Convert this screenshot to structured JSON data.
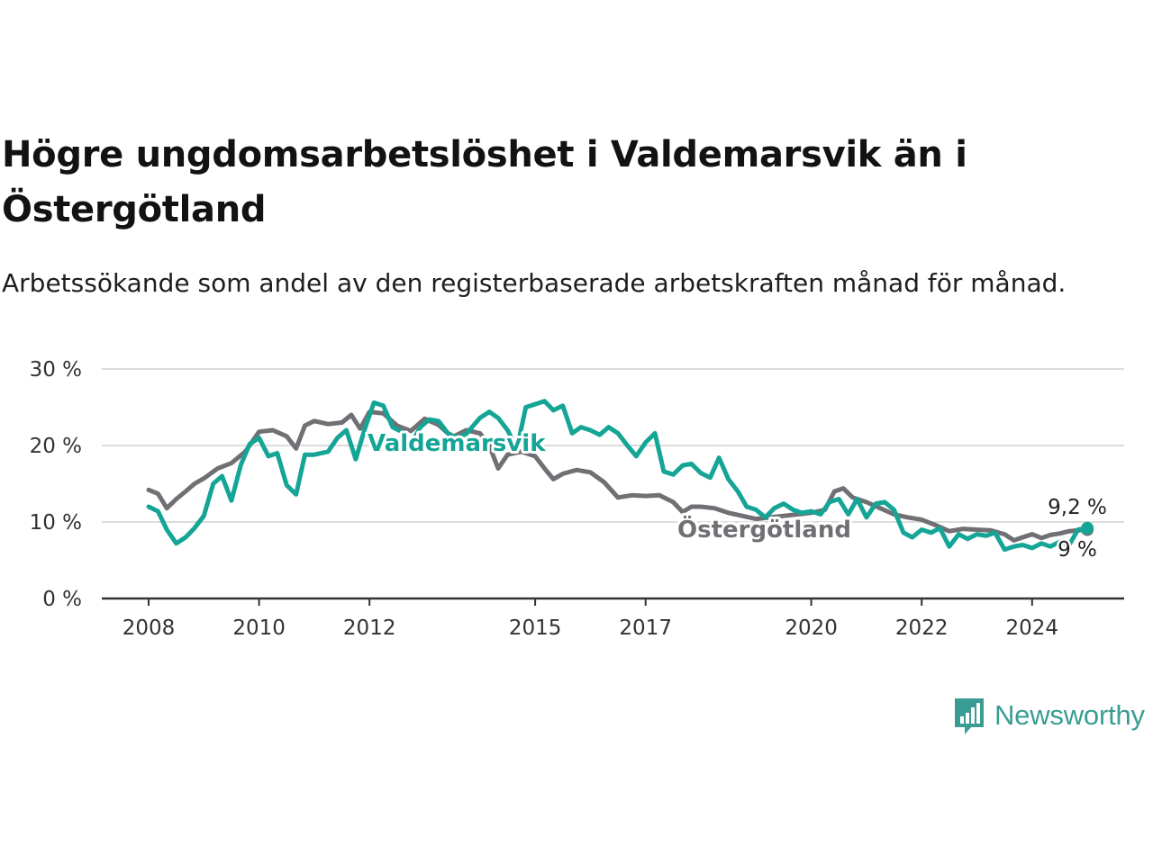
{
  "title": "Högre ungdomsarbetslöshet i Valdemarsvik än i Östergötland",
  "subtitle": "Arbetssökande som andel av den registerbaserade arbetskraften månad för månad.",
  "brand": {
    "name": "Newsworthy",
    "color": "#3a9d94",
    "icon": "bar-chart-speech-bubble-icon"
  },
  "chart_data": {
    "type": "line",
    "ylim": [
      0,
      30
    ],
    "y_ticks": [
      0,
      10,
      20,
      30
    ],
    "y_tick_labels": [
      "0 %",
      "10 %",
      "20 %",
      "30 %"
    ],
    "x_ticks": [
      2008,
      2010,
      2012,
      2015,
      2017,
      2020,
      2022,
      2024
    ],
    "x_tick_labels": [
      "2008",
      "2010",
      "2012",
      "2015",
      "2017",
      "2020",
      "2022",
      "2024"
    ],
    "grid": true,
    "series": [
      {
        "name": "Östergötland",
        "color": "#707074",
        "end_label": "9 %",
        "points": [
          [
            2008.0,
            14.2
          ],
          [
            2008.17,
            13.7
          ],
          [
            2008.33,
            11.8
          ],
          [
            2008.5,
            13.0
          ],
          [
            2008.67,
            14.0
          ],
          [
            2008.83,
            15.0
          ],
          [
            2009.0,
            15.7
          ],
          [
            2009.25,
            17.0
          ],
          [
            2009.5,
            17.7
          ],
          [
            2009.75,
            19.2
          ],
          [
            2010.0,
            21.8
          ],
          [
            2010.25,
            22.0
          ],
          [
            2010.5,
            21.2
          ],
          [
            2010.67,
            19.6
          ],
          [
            2010.83,
            22.6
          ],
          [
            2011.0,
            23.2
          ],
          [
            2011.25,
            22.8
          ],
          [
            2011.5,
            23.0
          ],
          [
            2011.67,
            24.0
          ],
          [
            2011.83,
            22.2
          ],
          [
            2012.0,
            24.4
          ],
          [
            2012.25,
            24.2
          ],
          [
            2012.5,
            22.6
          ],
          [
            2012.75,
            21.9
          ],
          [
            2013.0,
            23.5
          ],
          [
            2013.25,
            22.7
          ],
          [
            2013.5,
            21.1
          ],
          [
            2013.75,
            22.0
          ],
          [
            2014.0,
            21.6
          ],
          [
            2014.17,
            20.0
          ],
          [
            2014.33,
            17.0
          ],
          [
            2014.5,
            18.8
          ],
          [
            2014.75,
            19.2
          ],
          [
            2015.0,
            18.6
          ],
          [
            2015.17,
            17.0
          ],
          [
            2015.33,
            15.6
          ],
          [
            2015.5,
            16.3
          ],
          [
            2015.75,
            16.8
          ],
          [
            2016.0,
            16.5
          ],
          [
            2016.25,
            15.2
          ],
          [
            2016.5,
            13.2
          ],
          [
            2016.75,
            13.5
          ],
          [
            2017.0,
            13.4
          ],
          [
            2017.25,
            13.5
          ],
          [
            2017.5,
            12.6
          ],
          [
            2017.67,
            11.3
          ],
          [
            2017.83,
            12.0
          ],
          [
            2018.0,
            12.0
          ],
          [
            2018.25,
            11.8
          ],
          [
            2018.5,
            11.2
          ],
          [
            2018.75,
            10.8
          ],
          [
            2019.0,
            10.4
          ],
          [
            2019.25,
            10.6
          ],
          [
            2019.5,
            10.8
          ],
          [
            2019.75,
            11.0
          ],
          [
            2020.0,
            11.2
          ],
          [
            2020.25,
            11.6
          ],
          [
            2020.42,
            14.0
          ],
          [
            2020.58,
            14.4
          ],
          [
            2020.75,
            13.2
          ],
          [
            2021.0,
            12.6
          ],
          [
            2021.25,
            11.8
          ],
          [
            2021.5,
            11.0
          ],
          [
            2021.75,
            10.6
          ],
          [
            2022.0,
            10.3
          ],
          [
            2022.25,
            9.6
          ],
          [
            2022.5,
            8.8
          ],
          [
            2022.75,
            9.1
          ],
          [
            2023.0,
            9.0
          ],
          [
            2023.25,
            8.9
          ],
          [
            2023.5,
            8.4
          ],
          [
            2023.67,
            7.6
          ],
          [
            2023.83,
            8.0
          ],
          [
            2024.0,
            8.4
          ],
          [
            2024.17,
            7.9
          ],
          [
            2024.33,
            8.3
          ],
          [
            2024.5,
            8.5
          ],
          [
            2024.67,
            8.8
          ],
          [
            2024.83,
            8.9
          ],
          [
            2025.0,
            9.0
          ]
        ]
      },
      {
        "name": "Valdemarsvik",
        "color": "#14a596",
        "end_label": "9,2 %",
        "points": [
          [
            2008.0,
            12.0
          ],
          [
            2008.17,
            11.4
          ],
          [
            2008.33,
            9.0
          ],
          [
            2008.5,
            7.2
          ],
          [
            2008.67,
            8.0
          ],
          [
            2008.83,
            9.2
          ],
          [
            2009.0,
            10.8
          ],
          [
            2009.17,
            15.0
          ],
          [
            2009.33,
            16.0
          ],
          [
            2009.5,
            12.8
          ],
          [
            2009.67,
            17.5
          ],
          [
            2009.83,
            20.2
          ],
          [
            2010.0,
            21.0
          ],
          [
            2010.17,
            18.6
          ],
          [
            2010.33,
            19.0
          ],
          [
            2010.5,
            14.8
          ],
          [
            2010.67,
            13.6
          ],
          [
            2010.83,
            18.8
          ],
          [
            2011.0,
            18.8
          ],
          [
            2011.25,
            19.2
          ],
          [
            2011.42,
            21.0
          ],
          [
            2011.58,
            22.0
          ],
          [
            2011.75,
            18.2
          ],
          [
            2011.92,
            22.3
          ],
          [
            2012.08,
            25.6
          ],
          [
            2012.25,
            25.2
          ],
          [
            2012.42,
            22.4
          ],
          [
            2012.58,
            21.8
          ],
          [
            2012.75,
            20.1
          ],
          [
            2012.92,
            22.4
          ],
          [
            2013.08,
            23.4
          ],
          [
            2013.25,
            23.2
          ],
          [
            2013.42,
            21.6
          ],
          [
            2013.58,
            21.0
          ],
          [
            2013.75,
            21.5
          ],
          [
            2014.0,
            23.6
          ],
          [
            2014.17,
            24.4
          ],
          [
            2014.33,
            23.6
          ],
          [
            2014.5,
            22.0
          ],
          [
            2014.67,
            19.6
          ],
          [
            2014.83,
            25.0
          ],
          [
            2015.0,
            25.4
          ],
          [
            2015.17,
            25.8
          ],
          [
            2015.33,
            24.6
          ],
          [
            2015.5,
            25.2
          ],
          [
            2015.67,
            21.6
          ],
          [
            2015.83,
            22.4
          ],
          [
            2016.0,
            22.0
          ],
          [
            2016.17,
            21.4
          ],
          [
            2016.33,
            22.4
          ],
          [
            2016.5,
            21.6
          ],
          [
            2016.67,
            20.0
          ],
          [
            2016.83,
            18.6
          ],
          [
            2017.0,
            20.4
          ],
          [
            2017.17,
            21.6
          ],
          [
            2017.33,
            16.6
          ],
          [
            2017.5,
            16.2
          ],
          [
            2017.67,
            17.4
          ],
          [
            2017.83,
            17.6
          ],
          [
            2018.0,
            16.4
          ],
          [
            2018.17,
            15.8
          ],
          [
            2018.33,
            18.4
          ],
          [
            2018.5,
            15.6
          ],
          [
            2018.67,
            14.0
          ],
          [
            2018.83,
            12.0
          ],
          [
            2019.0,
            11.6
          ],
          [
            2019.17,
            10.6
          ],
          [
            2019.33,
            11.8
          ],
          [
            2019.5,
            12.4
          ],
          [
            2019.67,
            11.6
          ],
          [
            2019.83,
            11.2
          ],
          [
            2020.0,
            11.4
          ],
          [
            2020.17,
            11.0
          ],
          [
            2020.33,
            12.6
          ],
          [
            2020.5,
            13.0
          ],
          [
            2020.67,
            11.0
          ],
          [
            2020.83,
            13.0
          ],
          [
            2021.0,
            10.6
          ],
          [
            2021.17,
            12.4
          ],
          [
            2021.33,
            12.6
          ],
          [
            2021.5,
            11.6
          ],
          [
            2021.67,
            8.6
          ],
          [
            2021.83,
            8.0
          ],
          [
            2022.0,
            9.0
          ],
          [
            2022.17,
            8.6
          ],
          [
            2022.33,
            9.2
          ],
          [
            2022.5,
            6.8
          ],
          [
            2022.67,
            8.4
          ],
          [
            2022.83,
            7.8
          ],
          [
            2023.0,
            8.4
          ],
          [
            2023.17,
            8.2
          ],
          [
            2023.33,
            8.6
          ],
          [
            2023.5,
            6.4
          ],
          [
            2023.67,
            6.8
          ],
          [
            2023.83,
            7.0
          ],
          [
            2024.0,
            6.6
          ],
          [
            2024.17,
            7.2
          ],
          [
            2024.33,
            6.8
          ],
          [
            2024.5,
            7.4
          ],
          [
            2024.67,
            7.0
          ],
          [
            2024.83,
            9.0
          ],
          [
            2025.0,
            9.2
          ]
        ]
      }
    ]
  }
}
